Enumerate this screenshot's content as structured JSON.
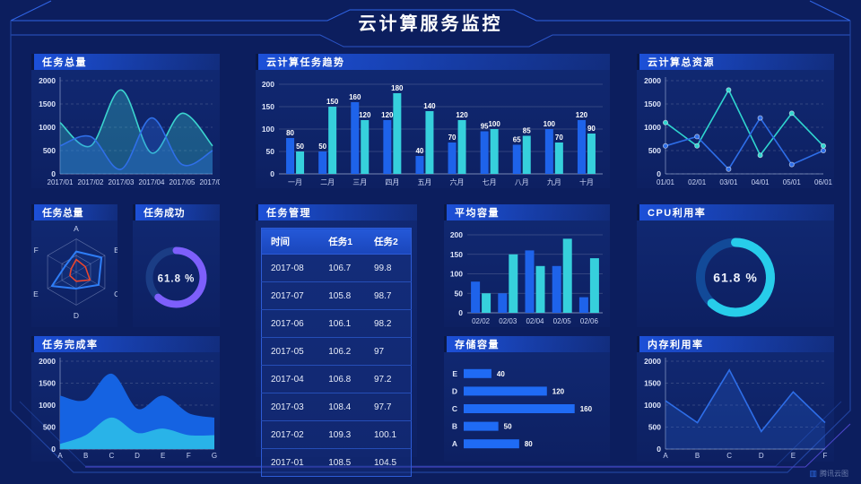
{
  "page_title": "云计算服务监控",
  "watermark": "腾讯云图",
  "colors": {
    "background": "#0c1e5e",
    "header_accent": "#1c50d8",
    "frame_blue": "#2b55c8",
    "frame_purple": "#4f46cc",
    "bar_blue": "#1e63ea",
    "bar_cyan": "#36d0dc",
    "line_cyan": "#2fd5cf",
    "line_blue": "#2e6ee8",
    "donut_purple": "#7d5ffb",
    "donut_cyan": "#27cdea"
  },
  "panels": {
    "task_total_line": {
      "title": "任务总量"
    },
    "task_trend": {
      "title": "云计算任务趋势"
    },
    "total_resource": {
      "title": "云计算总资源"
    },
    "task_total_radar": {
      "title": "任务总量"
    },
    "task_success": {
      "title": "任务成功"
    },
    "task_table": {
      "title": "任务管理",
      "columns": [
        "时间",
        "任务1",
        "任务2"
      ],
      "rows": [
        [
          "2017-08",
          "106.7",
          "99.8"
        ],
        [
          "2017-07",
          "105.8",
          "98.7"
        ],
        [
          "2017-06",
          "106.1",
          "98.2"
        ],
        [
          "2017-05",
          "106.2",
          "97"
        ],
        [
          "2017-04",
          "106.8",
          "97.2"
        ],
        [
          "2017-03",
          "108.4",
          "97.7"
        ],
        [
          "2017-02",
          "109.3",
          "100.1"
        ],
        [
          "2017-01",
          "108.5",
          "104.5"
        ]
      ]
    },
    "avg_capacity": {
      "title": "平均容量"
    },
    "cpu": {
      "title": "CPU利用率"
    },
    "completion": {
      "title": "任务完成率"
    },
    "storage": {
      "title": "存储容量"
    },
    "memory": {
      "title": "内存利用率"
    }
  },
  "chart_data": [
    {
      "id": "c-task-total",
      "type": "area",
      "title": "任务总量",
      "smooth": true,
      "grid": "dashed",
      "x": [
        "2017/01",
        "2017/02",
        "2017/03",
        "2017/04",
        "2017/05",
        "2017/06"
      ],
      "series": [
        {
          "name": "cyan",
          "values": [
            1100,
            600,
            1800,
            450,
            1300,
            600
          ]
        },
        {
          "name": "blue",
          "values": [
            600,
            800,
            100,
            1200,
            200,
            500
          ]
        }
      ],
      "colors": [
        "#3bd4cf",
        "#2f6fe8"
      ],
      "ylim": [
        0,
        2000
      ],
      "yticks": [
        0,
        500,
        1000,
        1500,
        2000
      ],
      "pad": {
        "l": 32,
        "r": 8,
        "t": 12,
        "b": 16
      }
    },
    {
      "id": "c-trend",
      "type": "bar",
      "title": "云计算任务趋势",
      "labels": true,
      "categories": [
        "一月",
        "二月",
        "三月",
        "四月",
        "五月",
        "六月",
        "七月",
        "八月",
        "九月",
        "十月"
      ],
      "series": [
        {
          "name": "blue",
          "values": [
            80,
            50,
            160,
            120,
            40,
            70,
            95,
            65,
            100,
            120
          ]
        },
        {
          "name": "cyan",
          "values": [
            50,
            150,
            120,
            180,
            140,
            120,
            100,
            85,
            70,
            90
          ]
        }
      ],
      "colors": [
        "#1e63ea",
        "#36d0dc"
      ],
      "ylim": [
        0,
        200
      ],
      "yticks": [
        0,
        50,
        100,
        150,
        200
      ],
      "barw": 9,
      "pad": {
        "l": 26,
        "r": 8,
        "t": 16,
        "b": 16
      }
    },
    {
      "id": "c-resource",
      "type": "line",
      "title": "云计算总资源",
      "markers": true,
      "grid": "dashed",
      "x": [
        "01/01",
        "02/01",
        "03/01",
        "04/01",
        "05/01",
        "06/01"
      ],
      "series": [
        {
          "name": "cyan",
          "values": [
            1100,
            600,
            1800,
            400,
            1300,
            600
          ]
        },
        {
          "name": "blue",
          "values": [
            600,
            800,
            100,
            1200,
            200,
            500
          ]
        }
      ],
      "colors": [
        "#2fd5cf",
        "#2e6ee8"
      ],
      "ylim": [
        0,
        2000
      ],
      "yticks": [
        0,
        500,
        1000,
        1500,
        2000
      ],
      "pad": {
        "l": 32,
        "r": 12,
        "t": 12,
        "b": 16
      }
    },
    {
      "id": "c-radar",
      "type": "radar",
      "title": "任务总量",
      "indicators": [
        "A",
        "B",
        "C",
        "D",
        "E",
        "F"
      ],
      "max": 100,
      "series": [
        {
          "name": "blue",
          "values": [
            62,
            88,
            78,
            50,
            85,
            38
          ]
        },
        {
          "name": "red",
          "values": [
            38,
            32,
            48,
            28,
            22,
            18
          ]
        }
      ],
      "colors": [
        "#2e7df6",
        "#e8452e"
      ]
    },
    {
      "id": "c-success",
      "type": "donut",
      "title": "任务成功",
      "value": 61.8,
      "label": "61.8 %",
      "color": "#7d5ffb",
      "track": "#1b3d85",
      "r": 30,
      "th": 8,
      "fs": 11.5
    },
    {
      "id": "c-capacity",
      "type": "bar",
      "title": "平均容量",
      "labels": false,
      "categories": [
        "02/02",
        "02/03",
        "02/04",
        "02/05",
        "02/06"
      ],
      "series": [
        {
          "name": "blue",
          "values": [
            80,
            50,
            160,
            120,
            40
          ]
        },
        {
          "name": "cyan",
          "values": [
            50,
            150,
            120,
            190,
            140
          ]
        }
      ],
      "colors": [
        "#1e63ea",
        "#36d0dc"
      ],
      "ylim": [
        0,
        200
      ],
      "yticks": [
        0,
        50,
        100,
        150,
        200
      ],
      "barw": 10,
      "pad": {
        "l": 26,
        "r": 8,
        "t": 16,
        "b": 16
      }
    },
    {
      "id": "c-cpu",
      "type": "donut",
      "title": "CPU利用率",
      "value": 61.8,
      "label": "61.8 %",
      "color": "#27cdea",
      "track": "#124a98",
      "r": 39,
      "th": 10,
      "fs": 14
    },
    {
      "id": "c-completion",
      "type": "area",
      "title": "任务完成率",
      "smooth": true,
      "opaque": true,
      "grid": "dashed",
      "x": [
        "A",
        "B",
        "C",
        "D",
        "E",
        "F",
        "G"
      ],
      "series": [
        {
          "name": "blue",
          "values": [
            1200,
            1100,
            1700,
            900,
            1200,
            800,
            700
          ]
        },
        {
          "name": "cyan",
          "values": [
            100,
            300,
            700,
            350,
            450,
            300,
            300
          ]
        }
      ],
      "colors": [
        "#1563e2",
        "#29b3e8"
      ],
      "ylim": [
        0,
        2000
      ],
      "yticks": [
        0,
        500,
        1000,
        1500,
        2000
      ],
      "pad": {
        "l": 32,
        "r": 6,
        "t": 10,
        "b": 14
      }
    },
    {
      "id": "c-storage",
      "type": "hbar",
      "title": "存储容量",
      "categories": [
        "E",
        "D",
        "C",
        "B",
        "A"
      ],
      "values": [
        40,
        120,
        160,
        50,
        80
      ],
      "xmax": 172,
      "color": "#1f6bf5",
      "pad": {
        "l": 22,
        "r": 30,
        "t": 14,
        "b": 10
      }
    },
    {
      "id": "c-memory",
      "type": "line",
      "title": "内存利用率",
      "fill": true,
      "grid": "dashed",
      "x": [
        "A",
        "B",
        "C",
        "D",
        "E",
        "F"
      ],
      "series": [
        {
          "name": "blue",
          "values": [
            1100,
            600,
            1800,
            400,
            1300,
            600
          ]
        }
      ],
      "colors": [
        "#2e6ee8"
      ],
      "ylim": [
        0,
        2000
      ],
      "yticks": [
        0,
        500,
        1000,
        1500,
        2000
      ],
      "pad": {
        "l": 32,
        "r": 10,
        "t": 10,
        "b": 14
      }
    }
  ]
}
